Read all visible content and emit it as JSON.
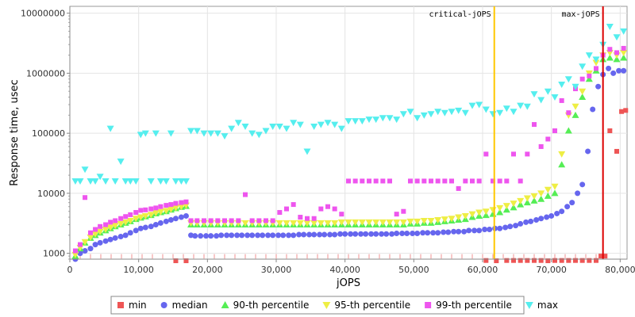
{
  "chart_data": {
    "type": "scatter",
    "xlabel": "jOPS",
    "ylabel": "Response time, usec",
    "y_scale": "log",
    "xlim": [
      0,
      81000
    ],
    "ylim": [
      800,
      13000000
    ],
    "x_ticks": [
      0,
      10000,
      20000,
      30000,
      40000,
      50000,
      60000,
      70000,
      80000
    ],
    "x_tick_labels": [
      "0",
      "10,000",
      "20,000",
      "30,000",
      "40,000",
      "50,000",
      "60,000",
      "70,000",
      "80,000"
    ],
    "y_ticks": [
      1000,
      10000,
      100000,
      1000000,
      10000000
    ],
    "y_tick_labels": [
      "1000",
      "10000",
      "100000",
      "1000000",
      "10000000"
    ],
    "grid": true,
    "legend_position": "bottom",
    "markers": [
      {
        "label": "critical-jOPS",
        "x": 61700,
        "color": "#ffc800"
      },
      {
        "label": "max-jOPS",
        "x": 77500,
        "color": "#dd0000"
      }
    ],
    "series": [
      {
        "name": "min",
        "color": "#ee5555",
        "shape": "square",
        "x": [
          15400,
          16900,
          60500,
          62000,
          63500,
          64500,
          65500,
          66500,
          67500,
          68500,
          69500,
          70500,
          71500,
          72500,
          73500,
          74500,
          75500,
          76500,
          77200,
          77800,
          78500,
          79500,
          80200,
          80800
        ],
        "y": [
          750,
          750,
          760,
          750,
          760,
          760,
          760,
          760,
          760,
          760,
          750,
          760,
          760,
          760,
          760,
          760,
          760,
          760,
          900,
          900,
          110000,
          50000,
          230000,
          240000
        ]
      },
      {
        "name": "median",
        "color": "#6666ee",
        "shape": "circle",
        "x": [
          800,
          1500,
          2200,
          3000,
          3700,
          4400,
          5200,
          5900,
          6600,
          7400,
          8100,
          8800,
          9600,
          10300,
          11000,
          11800,
          12500,
          13200,
          14000,
          14700,
          15400,
          16200,
          16900,
          17600,
          18200,
          19000,
          19800,
          20500,
          21300,
          22000,
          22800,
          23500,
          24300,
          25000,
          25800,
          26500,
          27300,
          28000,
          28800,
          29500,
          30300,
          31000,
          31800,
          32500,
          33300,
          34000,
          34800,
          35500,
          36300,
          37000,
          37800,
          38500,
          39300,
          40000,
          40800,
          41500,
          42300,
          43000,
          43800,
          44500,
          45300,
          46000,
          46800,
          47500,
          48300,
          49000,
          49800,
          50500,
          51300,
          52000,
          52800,
          53500,
          54300,
          55000,
          55800,
          56500,
          57300,
          58000,
          58800,
          59500,
          60300,
          61000,
          61800,
          62500,
          63300,
          64000,
          64800,
          65500,
          66300,
          67000,
          67800,
          68500,
          69300,
          70000,
          70800,
          71500,
          72300,
          73000,
          73800,
          74500,
          75300,
          76000,
          76800,
          77500,
          78300,
          79000,
          79800,
          80500
        ],
        "y": [
          800,
          1000,
          1100,
          1200,
          1400,
          1500,
          1600,
          1700,
          1800,
          1900,
          2000,
          2200,
          2400,
          2600,
          2700,
          2800,
          3000,
          3200,
          3400,
          3600,
          3800,
          4000,
          4200,
          2000,
          1950,
          1950,
          1950,
          1950,
          1950,
          2000,
          2000,
          2000,
          2000,
          2000,
          2000,
          2000,
          2000,
          2000,
          2000,
          2000,
          2000,
          2000,
          2000,
          2000,
          2050,
          2050,
          2050,
          2050,
          2050,
          2050,
          2050,
          2050,
          2100,
          2100,
          2100,
          2100,
          2100,
          2100,
          2100,
          2100,
          2100,
          2100,
          2100,
          2150,
          2150,
          2150,
          2150,
          2150,
          2200,
          2200,
          2200,
          2200,
          2250,
          2250,
          2300,
          2300,
          2300,
          2400,
          2400,
          2400,
          2500,
          2500,
          2600,
          2600,
          2700,
          2800,
          2900,
          3100,
          3300,
          3400,
          3600,
          3800,
          4000,
          4200,
          4600,
          5000,
          6000,
          7000,
          10000,
          14000,
          50000,
          250000,
          600000,
          950000,
          1200000,
          1000000,
          1100000,
          1100000
        ]
      },
      {
        "name": "90-th percentile",
        "color": "#55ee55",
        "shape": "triangle-up",
        "x": [
          800,
          1500,
          2200,
          3000,
          3700,
          4400,
          5200,
          5900,
          6600,
          7400,
          8100,
          8800,
          9600,
          10300,
          11000,
          11800,
          12500,
          13200,
          14000,
          14700,
          15400,
          16200,
          16900,
          17600,
          18500,
          19500,
          20500,
          21500,
          22500,
          23500,
          24500,
          25500,
          26500,
          27500,
          28500,
          29500,
          30500,
          31500,
          32500,
          33500,
          34500,
          35500,
          36500,
          37500,
          38500,
          39500,
          40500,
          41500,
          42500,
          43500,
          44500,
          45500,
          46500,
          47500,
          48500,
          49500,
          50500,
          51500,
          52500,
          53500,
          54500,
          55500,
          56500,
          57500,
          58500,
          59500,
          60500,
          61500,
          62500,
          63500,
          64500,
          65500,
          66500,
          67500,
          68500,
          69500,
          70500,
          71500,
          72500,
          73500,
          74500,
          75500,
          76500,
          77500,
          78500,
          79500,
          80500
        ],
        "y": [
          900,
          1200,
          1500,
          1800,
          2000,
          2200,
          2400,
          2600,
          2800,
          3000,
          3200,
          3400,
          3700,
          3900,
          4100,
          4300,
          4600,
          4800,
          5000,
          5300,
          5600,
          5900,
          6100,
          3000,
          3000,
          3000,
          3000,
          3000,
          3000,
          3000,
          3000,
          3000,
          3000,
          3000,
          3000,
          3000,
          3000,
          3000,
          3000,
          3000,
          3000,
          3000,
          3000,
          3000,
          3000,
          3000,
          3000,
          3000,
          3000,
          3000,
          3000,
          3000,
          3000,
          3000,
          3000,
          3100,
          3100,
          3200,
          3200,
          3300,
          3400,
          3500,
          3600,
          3700,
          4000,
          4200,
          4300,
          4500,
          4800,
          5300,
          5800,
          6500,
          7000,
          7500,
          8000,
          9000,
          10000,
          30000,
          110000,
          200000,
          400000,
          800000,
          1100000,
          1700000,
          1800000,
          1700000,
          1800000
        ]
      },
      {
        "name": "95-th percentile",
        "color": "#eeee44",
        "shape": "triangle-down",
        "x": [
          800,
          1500,
          2200,
          3000,
          3700,
          4400,
          5200,
          5900,
          6600,
          7400,
          8100,
          8800,
          9600,
          10300,
          11000,
          11800,
          12500,
          13200,
          14000,
          14700,
          15400,
          16200,
          16900,
          17600,
          18500,
          19500,
          20500,
          21500,
          22500,
          23500,
          24500,
          25500,
          26500,
          27500,
          28500,
          29500,
          30500,
          31500,
          32500,
          33500,
          34500,
          35500,
          36500,
          37500,
          38500,
          39500,
          40500,
          41500,
          42500,
          43500,
          44500,
          45500,
          46500,
          47500,
          48500,
          49500,
          50500,
          51500,
          52500,
          53500,
          54500,
          55500,
          56500,
          57500,
          58500,
          59500,
          60500,
          61500,
          62500,
          63500,
          64500,
          65500,
          66500,
          67500,
          68500,
          69500,
          70500,
          71500,
          72500,
          73500,
          74500,
          75500,
          76500,
          77500,
          78500,
          79500,
          80500
        ],
        "y": [
          950,
          1250,
          1550,
          1850,
          2100,
          2300,
          2500,
          2700,
          2900,
          3100,
          3300,
          3500,
          3800,
          4000,
          4200,
          4400,
          4700,
          4900,
          5100,
          5400,
          5700,
          6000,
          6300,
          3200,
          3200,
          3200,
          3200,
          3200,
          3200,
          3200,
          3200,
          3200,
          3200,
          3200,
          3200,
          3200,
          3200,
          3200,
          3200,
          3200,
          3200,
          3200,
          3200,
          3200,
          3200,
          3300,
          3300,
          3300,
          3300,
          3300,
          3300,
          3300,
          3300,
          3300,
          3300,
          3400,
          3400,
          3500,
          3500,
          3600,
          3700,
          3800,
          4000,
          4200,
          4500,
          4800,
          5000,
          5300,
          5700,
          6200,
          6800,
          7500,
          8300,
          9000,
          10000,
          11500,
          13000,
          45000,
          200000,
          280000,
          500000,
          1000000,
          1500000,
          2000000,
          2200000,
          2000000,
          2200000
        ]
      },
      {
        "name": "99-th percentile",
        "color": "#ee55ee",
        "shape": "square",
        "x": [
          800,
          1500,
          2200,
          3000,
          3700,
          4400,
          5200,
          5900,
          6600,
          7400,
          8100,
          8800,
          9600,
          10300,
          11000,
          11800,
          12500,
          13200,
          14000,
          14700,
          15400,
          16200,
          16900,
          17600,
          18500,
          19500,
          20500,
          21500,
          22500,
          23500,
          24500,
          25500,
          26500,
          27500,
          28500,
          29500,
          30500,
          31500,
          32500,
          33500,
          34500,
          35500,
          36500,
          37500,
          38500,
          39500,
          40500,
          41500,
          42500,
          43500,
          44500,
          45500,
          46500,
          47500,
          48500,
          49500,
          50500,
          51500,
          52500,
          53500,
          54500,
          55500,
          56500,
          57500,
          58500,
          59500,
          60500,
          61500,
          62500,
          63500,
          64500,
          65500,
          66500,
          67500,
          68500,
          69500,
          70500,
          71500,
          72500,
          73500,
          74500,
          75500,
          76500,
          77500,
          78500,
          79500,
          80500
        ],
        "y": [
          1100,
          1400,
          8500,
          2200,
          2500,
          2800,
          3000,
          3300,
          3500,
          3800,
          4100,
          4400,
          4800,
          5200,
          5300,
          5500,
          5700,
          6000,
          6300,
          6500,
          6800,
          7000,
          7200,
          3500,
          3500,
          3500,
          3500,
          3500,
          3500,
          3500,
          3500,
          9500,
          3500,
          3500,
          3500,
          3500,
          4800,
          5500,
          6500,
          4000,
          3800,
          3800,
          5500,
          6000,
          5500,
          4500,
          16000,
          16000,
          16000,
          16000,
          16000,
          16000,
          16000,
          4500,
          5000,
          16000,
          16000,
          16000,
          16000,
          16000,
          16000,
          16000,
          12000,
          16000,
          16000,
          16000,
          45000,
          16000,
          16000,
          16000,
          45000,
          16000,
          45000,
          140000,
          60000,
          80000,
          110000,
          350000,
          220000,
          550000,
          800000,
          900000,
          1200000,
          2000000,
          2500000,
          2200000,
          2600000
        ]
      },
      {
        "name": "max",
        "color": "#55eeee",
        "shape": "triangle-down",
        "x": [
          800,
          1500,
          2200,
          3000,
          3700,
          4400,
          5200,
          5900,
          6600,
          7400,
          8100,
          8800,
          9600,
          10300,
          11000,
          11800,
          12500,
          13200,
          14000,
          14700,
          15400,
          16200,
          16900,
          17600,
          18500,
          19500,
          20500,
          21500,
          22500,
          23500,
          24500,
          25500,
          26500,
          27500,
          28500,
          29500,
          30500,
          31500,
          32500,
          33500,
          34500,
          35500,
          36500,
          37500,
          38500,
          39500,
          40500,
          41500,
          42500,
          43500,
          44500,
          45500,
          46500,
          47500,
          48500,
          49500,
          50500,
          51500,
          52500,
          53500,
          54500,
          55500,
          56500,
          57500,
          58500,
          59500,
          60500,
          61500,
          62500,
          63500,
          64500,
          65500,
          66500,
          67500,
          68500,
          69500,
          70500,
          71500,
          72500,
          73500,
          74500,
          75500,
          76500,
          77500,
          78500,
          79500,
          80500
        ],
        "y": [
          16000,
          16000,
          25000,
          16000,
          16000,
          19000,
          16000,
          120000,
          16000,
          34000,
          16000,
          16000,
          16000,
          95000,
          100000,
          16000,
          100000,
          16000,
          16000,
          100000,
          16000,
          16000,
          16000,
          110000,
          110000,
          100000,
          100000,
          100000,
          90000,
          120000,
          150000,
          130000,
          100000,
          95000,
          110000,
          130000,
          130000,
          120000,
          150000,
          140000,
          50000,
          130000,
          140000,
          150000,
          140000,
          120000,
          160000,
          160000,
          160000,
          170000,
          170000,
          180000,
          180000,
          170000,
          210000,
          230000,
          180000,
          200000,
          210000,
          230000,
          220000,
          230000,
          240000,
          220000,
          290000,
          300000,
          250000,
          210000,
          220000,
          260000,
          230000,
          290000,
          280000,
          450000,
          360000,
          500000,
          400000,
          650000,
          800000,
          600000,
          1300000,
          2000000,
          1700000,
          3000000,
          6000000,
          4000000,
          5000000
        ]
      }
    ]
  }
}
